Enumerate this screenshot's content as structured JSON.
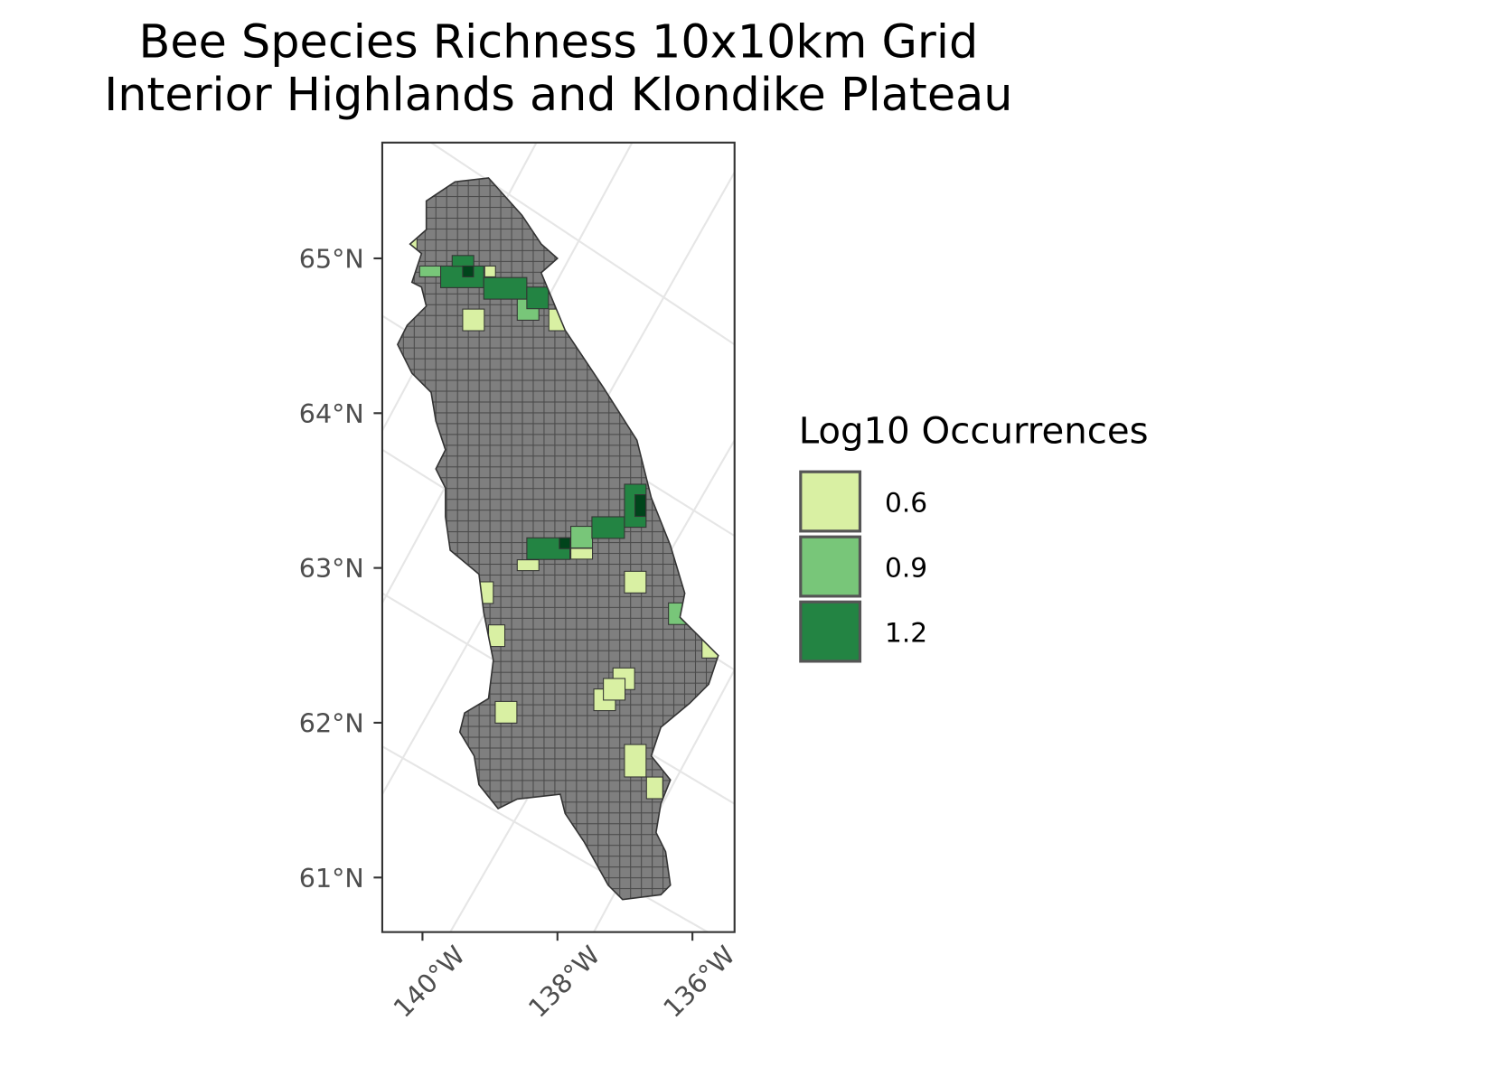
{
  "map": {
    "title": "Bee Species Richness 10x10km Grid",
    "subtitle": "Interior Highlands and Klondike Plateau",
    "yticks": [
      {
        "value": 65,
        "label": "65°N"
      },
      {
        "value": 64,
        "label": "64°N"
      },
      {
        "value": 63,
        "label": "63°N"
      },
      {
        "value": 62,
        "label": "62°N"
      },
      {
        "value": 61,
        "label": "61°N"
      }
    ],
    "xticks": [
      {
        "value": -140,
        "label": "140°W"
      },
      {
        "value": -138,
        "label": "138°W"
      },
      {
        "value": -136,
        "label": "136°W"
      }
    ],
    "legend": {
      "title": "Log10 Occurrences",
      "entries": [
        0.6,
        0.9,
        1.2
      ],
      "colors": [
        "#d9f0a3",
        "#78c679",
        "#238443"
      ]
    }
  }
}
